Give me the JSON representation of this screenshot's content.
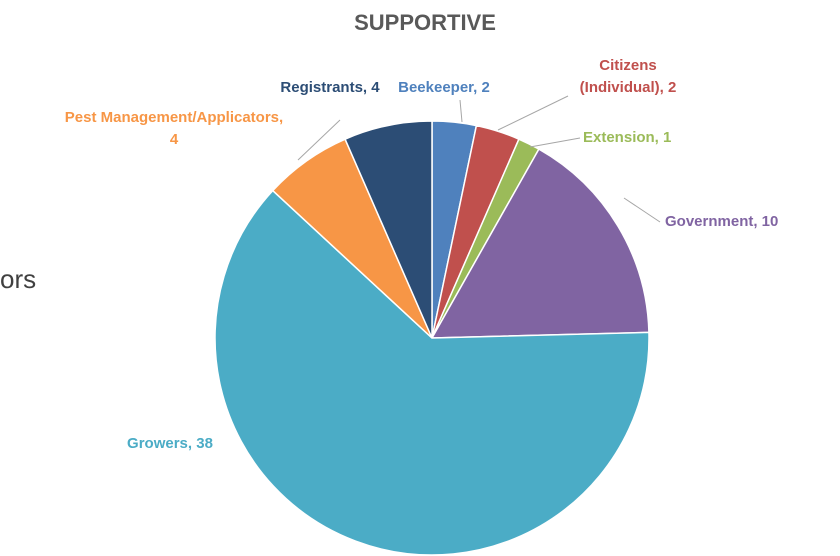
{
  "side_text": "ors",
  "chart_data": {
    "type": "pie",
    "title": "SUPPORTIVE",
    "slices": [
      {
        "name": "Beekeeper",
        "value": 2,
        "label": "Beekeeper, 2",
        "color": "#4f81bd"
      },
      {
        "name": "Citizens (Individual)",
        "value": 2,
        "label_lines": [
          "Citizens",
          "(Individual), 2"
        ],
        "color": "#c0504d"
      },
      {
        "name": "Extension",
        "value": 1,
        "label": "Extension, 1",
        "color": "#9bbb59"
      },
      {
        "name": "Government",
        "value": 10,
        "label": "Government, 10",
        "color": "#8064a2"
      },
      {
        "name": "Growers",
        "value": 38,
        "label": "Growers, 38",
        "color": "#4bacc6"
      },
      {
        "name": "Pest Management/Applicators",
        "value": 4,
        "label_lines": [
          "Pest Management/Applicators,",
          "4"
        ],
        "color": "#f79646"
      },
      {
        "name": "Registrants",
        "value": 4,
        "label": "Registrants, 4",
        "color": "#2c4d75"
      }
    ],
    "legend": "none"
  }
}
